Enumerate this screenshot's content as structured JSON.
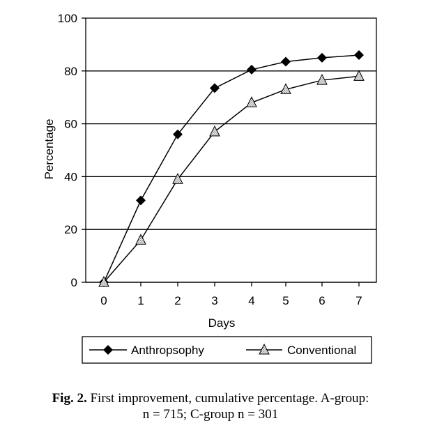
{
  "chart_data": {
    "type": "line",
    "title": "",
    "xlabel": "Days",
    "ylabel": "Percentage",
    "x": [
      0,
      1,
      2,
      3,
      4,
      5,
      6,
      7
    ],
    "xticks": [
      "0",
      "1",
      "2",
      "3",
      "4",
      "5",
      "6",
      "7"
    ],
    "ylim": [
      0,
      100
    ],
    "yticks": [
      "0",
      "20",
      "40",
      "60",
      "80",
      "100"
    ],
    "grid": "horizontal",
    "legend_position": "bottom",
    "series": [
      {
        "name": "Anthropsophy",
        "marker": "filled-diamond",
        "x": [
          0,
          1,
          2,
          3,
          4,
          5,
          6,
          7
        ],
        "values": [
          0,
          31,
          56,
          73.5,
          80.5,
          83.5,
          85,
          86
        ]
      },
      {
        "name": "Conventional",
        "marker": "hatched-triangle",
        "x": [
          0,
          1,
          2,
          3,
          4,
          5,
          6,
          7
        ],
        "values": [
          0,
          16,
          39,
          57,
          68,
          73,
          76.5,
          78
        ]
      }
    ]
  },
  "caption": {
    "label": "Fig. 2.",
    "line1": "First improvement, cumulative percentage. A-group:",
    "line2": "n = 715; C-group n = 301"
  }
}
